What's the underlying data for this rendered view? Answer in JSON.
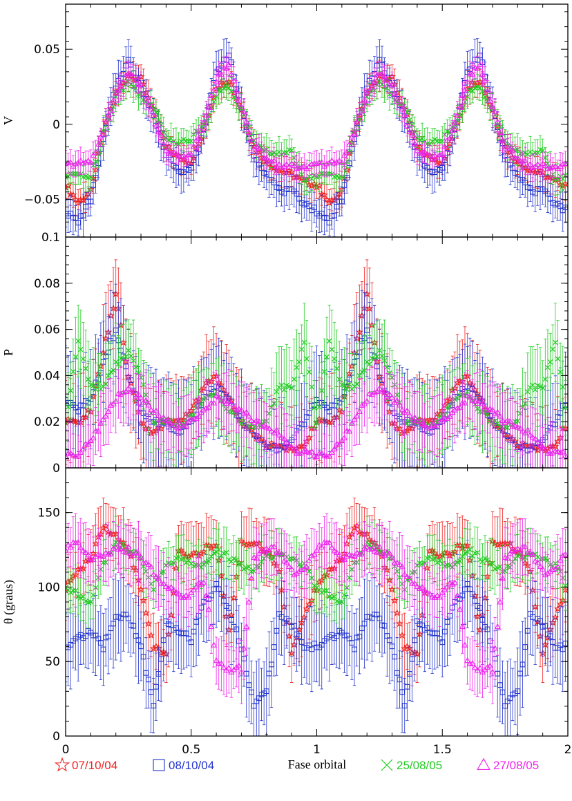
{
  "chart_data": {
    "type": "scatter",
    "xlabel": "Fase orbital",
    "xlim": [
      0,
      2
    ],
    "xticks": [
      {
        "value": 0,
        "label": "0"
      },
      {
        "value": 0.5,
        "label": "0.5"
      },
      {
        "value": 1,
        "label": "1"
      },
      {
        "value": 1.5,
        "label": "1.5"
      },
      {
        "value": 2,
        "label": "2"
      }
    ],
    "legend_placement": "bottom",
    "series": [
      {
        "name": "07/10/04",
        "marker": "star",
        "color": "#ee2222"
      },
      {
        "name": "08/10/04",
        "marker": "square",
        "color": "#2233cc"
      },
      {
        "name": "25/08/05",
        "marker": "cross",
        "color": "#22cc22"
      },
      {
        "name": "27/08/05",
        "marker": "triangle",
        "color": "#ee22ee"
      }
    ],
    "panels": [
      {
        "ylabel": "V",
        "ylim": [
          -0.075,
          0.08
        ],
        "yticks": [
          {
            "value": 0.05,
            "label": "0.05"
          },
          {
            "value": 0,
            "label": "0"
          },
          {
            "value": -0.05,
            "label": "−0.05"
          }
        ],
        "curves": [
          {
            "series": "07/10/04",
            "x": [
              0,
              0.05,
              0.1,
              0.15,
              0.2,
              0.25,
              0.3,
              0.35,
              0.4,
              0.45,
              0.5,
              0.55,
              0.6,
              0.65,
              0.7,
              0.75,
              0.8,
              0.85,
              0.9,
              0.95,
              1
            ],
            "y": [
              -0.04,
              -0.052,
              -0.045,
              -0.005,
              0.02,
              0.033,
              0.03,
              0.01,
              -0.015,
              -0.022,
              -0.025,
              -0.005,
              0.025,
              0.03,
              0.01,
              -0.015,
              -0.025,
              -0.03,
              -0.033,
              -0.038,
              -0.04
            ],
            "err": 0.01
          },
          {
            "series": "08/10/04",
            "x": [
              0,
              0.05,
              0.1,
              0.15,
              0.2,
              0.25,
              0.3,
              0.35,
              0.4,
              0.45,
              0.5,
              0.55,
              0.6,
              0.65,
              0.7,
              0.75,
              0.8,
              0.85,
              0.9,
              0.95,
              1
            ],
            "y": [
              -0.058,
              -0.065,
              -0.05,
              -0.01,
              0.025,
              0.042,
              0.025,
              0.005,
              -0.02,
              -0.03,
              -0.03,
              -0.005,
              0.035,
              0.047,
              0.01,
              -0.02,
              -0.033,
              -0.044,
              -0.045,
              -0.052,
              -0.058
            ],
            "err": 0.012
          },
          {
            "series": "25/08/05",
            "x": [
              0,
              0.05,
              0.1,
              0.15,
              0.2,
              0.25,
              0.3,
              0.35,
              0.4,
              0.45,
              0.5,
              0.55,
              0.6,
              0.65,
              0.7,
              0.75,
              0.8,
              0.85,
              0.9,
              0.95,
              1
            ],
            "y": [
              -0.035,
              -0.033,
              -0.035,
              -0.005,
              0.018,
              0.028,
              0.02,
              0.01,
              -0.008,
              -0.012,
              -0.01,
              0.0,
              0.02,
              0.025,
              0.01,
              -0.012,
              -0.018,
              -0.02,
              -0.018,
              -0.035,
              -0.035
            ],
            "err": 0.009
          },
          {
            "series": "27/08/05",
            "x": [
              0,
              0.05,
              0.1,
              0.15,
              0.2,
              0.25,
              0.3,
              0.35,
              0.4,
              0.45,
              0.5,
              0.55,
              0.6,
              0.65,
              0.7,
              0.75,
              0.8,
              0.85,
              0.9,
              0.95,
              1
            ],
            "y": [
              -0.027,
              -0.026,
              -0.025,
              -0.005,
              0.02,
              0.035,
              0.025,
              0.005,
              -0.017,
              -0.022,
              -0.02,
              0.0,
              0.03,
              0.04,
              0.012,
              -0.015,
              -0.022,
              -0.027,
              -0.028,
              -0.028,
              -0.027
            ],
            "err": 0.008
          }
        ]
      },
      {
        "ylabel": "P",
        "ylim": [
          0,
          0.1
        ],
        "yticks": [
          {
            "value": 0.1,
            "label": "0.1"
          },
          {
            "value": 0.08,
            "label": "0.08"
          },
          {
            "value": 0.06,
            "label": "0.06"
          },
          {
            "value": 0.04,
            "label": "0.04"
          },
          {
            "value": 0.02,
            "label": "0.02"
          },
          {
            "value": 0,
            "label": "0"
          }
        ],
        "curves": [
          {
            "series": "07/10/04",
            "x": [
              0,
              0.05,
              0.1,
              0.15,
              0.2,
              0.25,
              0.3,
              0.35,
              0.4,
              0.45,
              0.5,
              0.55,
              0.6,
              0.65,
              0.7,
              0.75,
              0.8,
              0.85,
              0.9,
              0.95,
              1
            ],
            "y": [
              0.02,
              0.02,
              0.025,
              0.05,
              0.075,
              0.04,
              0.02,
              0.015,
              0.02,
              0.02,
              0.025,
              0.035,
              0.04,
              0.03,
              0.02,
              0.015,
              0.01,
              0.01,
              0.008,
              0.01,
              0.02
            ],
            "err": 0.018
          },
          {
            "series": "08/10/04",
            "x": [
              0,
              0.05,
              0.1,
              0.15,
              0.2,
              0.25,
              0.3,
              0.35,
              0.4,
              0.45,
              0.5,
              0.55,
              0.6,
              0.65,
              0.7,
              0.75,
              0.8,
              0.85,
              0.9,
              0.95,
              1
            ],
            "y": [
              0.03,
              0.025,
              0.03,
              0.045,
              0.06,
              0.04,
              0.025,
              0.02,
              0.018,
              0.015,
              0.02,
              0.03,
              0.035,
              0.03,
              0.02,
              0.015,
              0.01,
              0.008,
              0.012,
              0.02,
              0.03
            ],
            "err": 0.02
          },
          {
            "series": "25/08/05",
            "x": [
              0,
              0.05,
              0.1,
              0.15,
              0.2,
              0.25,
              0.3,
              0.35,
              0.4,
              0.45,
              0.5,
              0.55,
              0.6,
              0.65,
              0.7,
              0.75,
              0.8,
              0.85,
              0.9,
              0.95,
              1
            ],
            "y": [
              0.02,
              0.055,
              0.035,
              0.035,
              0.045,
              0.05,
              0.04,
              0.02,
              0.02,
              0.018,
              0.022,
              0.03,
              0.032,
              0.025,
              0.02,
              0.018,
              0.02,
              0.035,
              0.035,
              0.055,
              0.02
            ],
            "err": 0.015
          },
          {
            "series": "27/08/05",
            "x": [
              0,
              0.05,
              0.1,
              0.15,
              0.2,
              0.25,
              0.3,
              0.35,
              0.4,
              0.45,
              0.5,
              0.55,
              0.6,
              0.65,
              0.7,
              0.75,
              0.8,
              0.85,
              0.9,
              0.95,
              1
            ],
            "y": [
              0.006,
              0.006,
              0.012,
              0.02,
              0.03,
              0.035,
              0.03,
              0.025,
              0.02,
              0.018,
              0.02,
              0.025,
              0.03,
              0.028,
              0.025,
              0.02,
              0.018,
              0.015,
              0.008,
              0.006,
              0.006
            ],
            "err": 0.012
          }
        ]
      },
      {
        "ylabel": "θ (graus)",
        "ylim": [
          0,
          180
        ],
        "yticks": [
          {
            "value": 150,
            "label": "150"
          },
          {
            "value": 100,
            "label": "100"
          },
          {
            "value": 50,
            "label": "50"
          },
          {
            "value": 0,
            "label": "0"
          }
        ],
        "curves": [
          {
            "series": "07/10/04",
            "x": [
              0,
              0.05,
              0.1,
              0.15,
              0.2,
              0.25,
              0.3,
              0.35,
              0.4,
              0.45,
              0.5,
              0.55,
              0.6,
              0.65,
              0.7,
              0.75,
              0.8,
              0.85,
              0.9,
              0.95,
              1
            ],
            "y": [
              100,
              110,
              120,
              140,
              135,
              125,
              100,
              60,
              55,
              125,
              120,
              125,
              130,
              70,
              130,
              130,
              125,
              110,
              55,
              80,
              100
            ],
            "err": 20
          },
          {
            "series": "08/10/04",
            "x": [
              0,
              0.05,
              0.1,
              0.15,
              0.2,
              0.25,
              0.3,
              0.35,
              0.4,
              0.45,
              0.5,
              0.55,
              0.6,
              0.65,
              0.7,
              0.75,
              0.8,
              0.85,
              0.9,
              0.95,
              1
            ],
            "y": [
              60,
              65,
              70,
              60,
              80,
              80,
              60,
              20,
              75,
              70,
              65,
              90,
              100,
              85,
              60,
              20,
              30,
              80,
              75,
              60,
              60
            ],
            "err": 25
          },
          {
            "series": "25/08/05",
            "x": [
              0,
              0.05,
              0.1,
              0.15,
              0.2,
              0.25,
              0.3,
              0.35,
              0.4,
              0.45,
              0.5,
              0.55,
              0.6,
              0.65,
              0.7,
              0.75,
              0.8,
              0.85,
              0.9,
              0.95,
              1
            ],
            "y": [
              100,
              95,
              90,
              115,
              130,
              125,
              120,
              100,
              115,
              120,
              115,
              115,
              125,
              120,
              115,
              110,
              120,
              120,
              120,
              115,
              100
            ],
            "err": 15
          },
          {
            "series": "27/08/05",
            "x": [
              0,
              0.05,
              0.1,
              0.15,
              0.2,
              0.25,
              0.3,
              0.35,
              0.4,
              0.45,
              0.5,
              0.55,
              0.6,
              0.65,
              0.7,
              0.75,
              0.8,
              0.85,
              0.9,
              0.95,
              1
            ],
            "y": [
              125,
              130,
              120,
              120,
              125,
              125,
              120,
              110,
              100,
              95,
              95,
              105,
              50,
              45,
              45,
              120,
              125,
              125,
              110,
              110,
              125
            ],
            "err": 18
          }
        ]
      }
    ]
  }
}
